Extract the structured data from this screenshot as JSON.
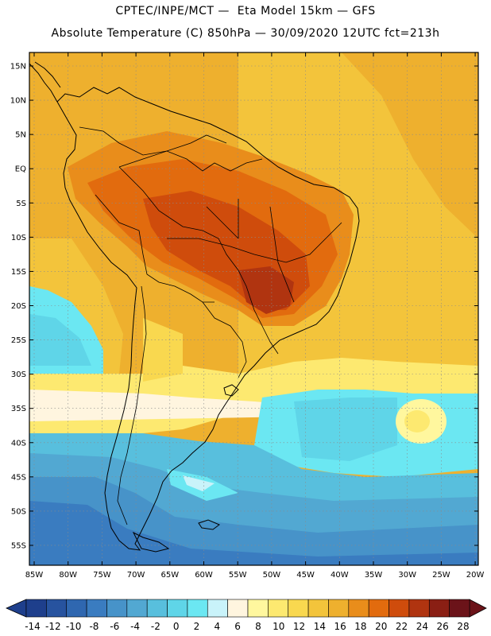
{
  "header": {
    "line1": "CPTEC/INPE/MCT —  Eta Model 15km — GFS",
    "line2": "Absolute Temperature (C) 850hPa — 30/09/2020 12UTC fct=213h"
  },
  "map": {
    "lat_labels": [
      "15N",
      "10N",
      "5N",
      "EQ",
      "5S",
      "10S",
      "15S",
      "20S",
      "25S",
      "30S",
      "35S",
      "40S",
      "45S",
      "50S",
      "55S"
    ],
    "lon_labels": [
      "85W",
      "80W",
      "75W",
      "70W",
      "65W",
      "60W",
      "55W",
      "50W",
      "45W",
      "40W",
      "35W",
      "30W",
      "25W",
      "20W"
    ]
  },
  "colorbar": {
    "labels": [
      "-14",
      "-12",
      "-10",
      "-8",
      "-6",
      "-4",
      "-2",
      "0",
      "2",
      "4",
      "6",
      "8",
      "10",
      "12",
      "14",
      "16",
      "18",
      "20",
      "22",
      "24",
      "26",
      "28"
    ],
    "colors": [
      "#1e3f8c",
      "#27539f",
      "#2f67b0",
      "#3a7cc0",
      "#4793c9",
      "#52a8d2",
      "#58bfdd",
      "#5fd5e8",
      "#6be7f2",
      "#c9f3fa",
      "#fff5df",
      "#fff79e",
      "#fde970",
      "#f9d84f",
      "#f3c43b",
      "#eeb02e",
      "#e98d1b",
      "#e26b0e",
      "#cf4c0c",
      "#b03410",
      "#8a1f14",
      "#6b1319"
    ]
  }
}
